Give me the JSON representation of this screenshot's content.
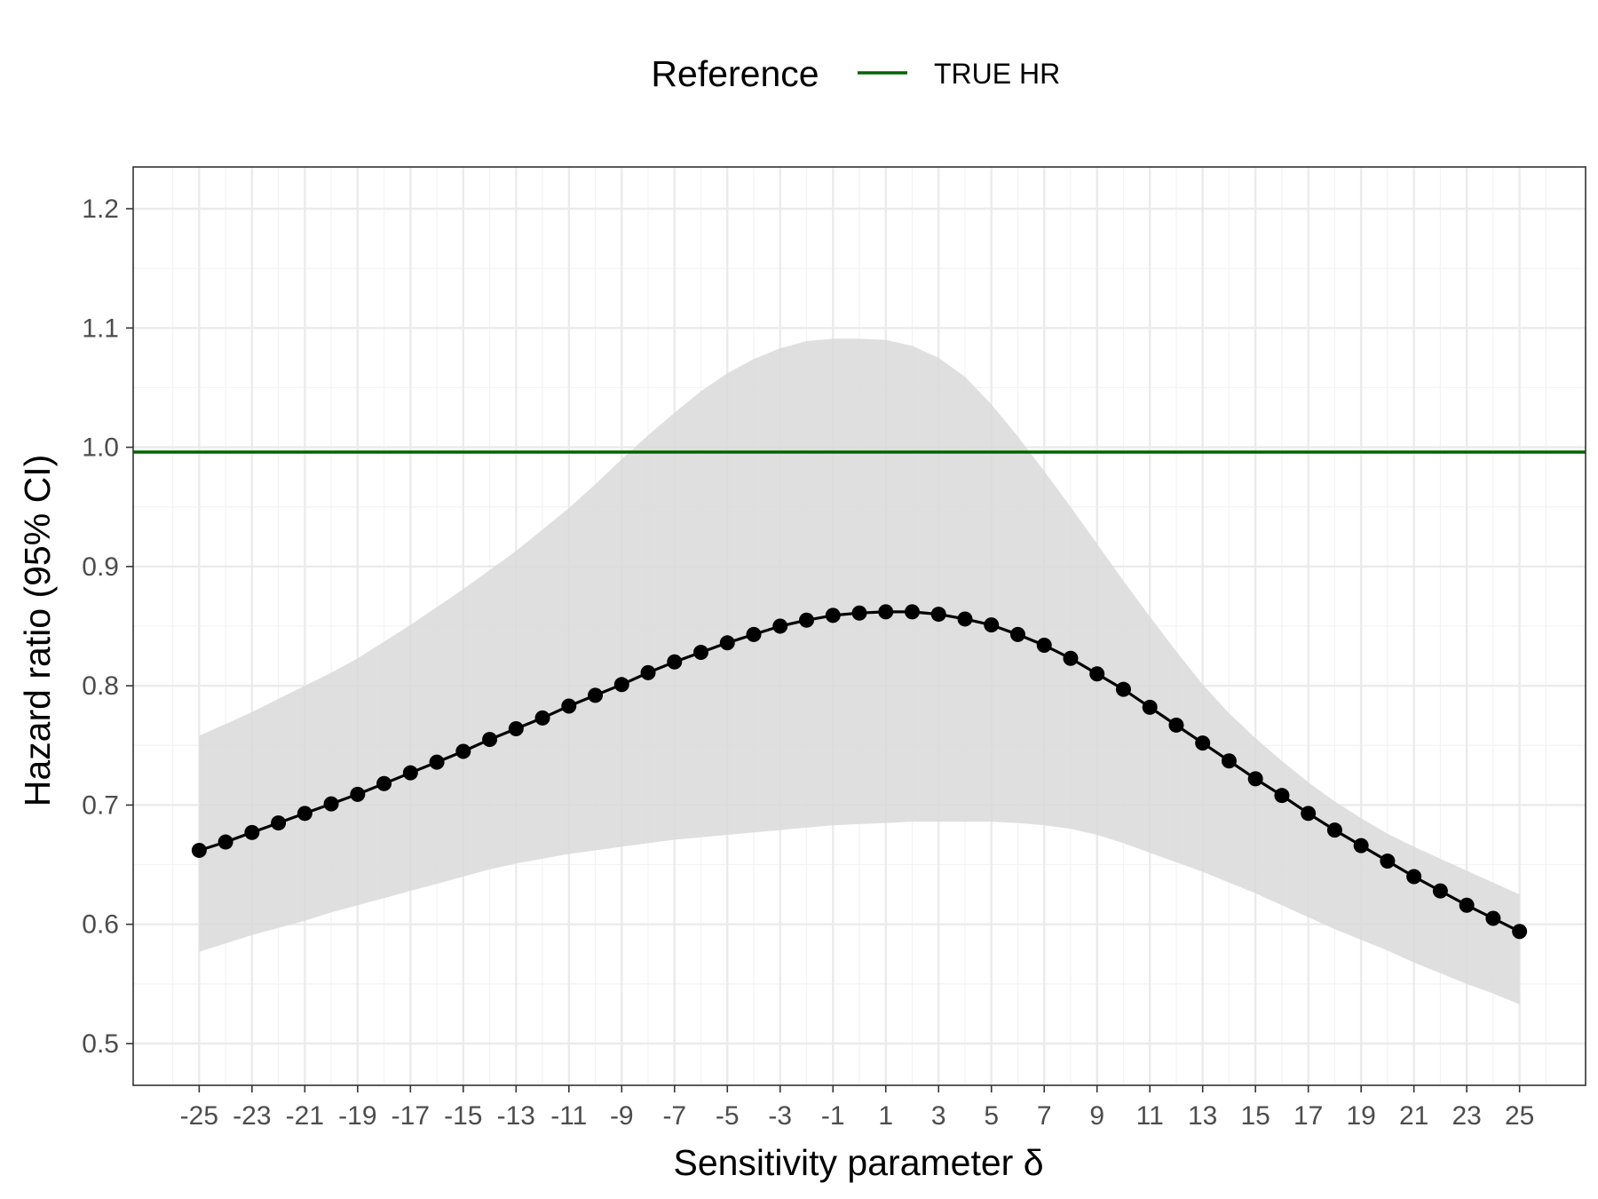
{
  "chart_data": {
    "type": "line",
    "xlabel": "Sensitivity parameter δ",
    "ylabel": "Hazard ratio (95% CI)",
    "xlim": [
      -27.5,
      27.5
    ],
    "ylim": [
      0.465,
      1.235
    ],
    "x_ticks": [
      -25,
      -23,
      -21,
      -19,
      -17,
      -15,
      -13,
      -11,
      -9,
      -7,
      -5,
      -3,
      -1,
      1,
      3,
      5,
      7,
      9,
      11,
      13,
      15,
      17,
      19,
      21,
      23,
      25
    ],
    "y_ticks": [
      0.5,
      0.6,
      0.7,
      0.8,
      0.9,
      1.0,
      1.1,
      1.2
    ],
    "x_tick_labels": [
      "-25",
      "-23",
      "-21",
      "-19",
      "-17",
      "-15",
      "-13",
      "-11",
      "-9",
      "-7",
      "-5",
      "-3",
      "-1",
      "1",
      "3",
      "5",
      "7",
      "9",
      "11",
      "13",
      "15",
      "17",
      "19",
      "21",
      "23",
      "25"
    ],
    "y_tick_labels": [
      "0.5",
      "0.6",
      "0.7",
      "0.8",
      "0.9",
      "1.0",
      "1.1",
      "1.2"
    ],
    "grid": true,
    "legend": {
      "title": "Reference",
      "position": "top",
      "entries": [
        {
          "label": "TRUE HR",
          "color": "#006400"
        }
      ]
    },
    "reference_line": {
      "y": 0.996,
      "color": "#006400",
      "label": "TRUE HR"
    },
    "series": [
      {
        "x": [
          -25,
          -24,
          -23,
          -22,
          -21,
          -20,
          -19,
          -18,
          -17,
          -16,
          -15,
          -14,
          -13,
          -12,
          -11,
          -10,
          -9,
          -8,
          -7,
          -6,
          -5,
          -4,
          -3,
          -2,
          -1,
          0,
          1,
          2,
          3,
          4,
          5,
          6,
          7,
          8,
          9,
          10,
          11,
          12,
          13,
          14,
          15,
          16,
          17,
          18,
          19,
          20,
          21,
          22,
          23,
          24,
          25
        ],
        "y": [
          0.662,
          0.669,
          0.677,
          0.685,
          0.693,
          0.701,
          0.709,
          0.718,
          0.727,
          0.736,
          0.745,
          0.755,
          0.764,
          0.773,
          0.783,
          0.792,
          0.801,
          0.811,
          0.82,
          0.828,
          0.836,
          0.843,
          0.85,
          0.855,
          0.859,
          0.861,
          0.862,
          0.862,
          0.86,
          0.856,
          0.851,
          0.843,
          0.834,
          0.823,
          0.81,
          0.797,
          0.782,
          0.767,
          0.752,
          0.737,
          0.722,
          0.708,
          0.693,
          0.679,
          0.666,
          0.653,
          0.64,
          0.628,
          0.616,
          0.605,
          0.594
        ],
        "lower": [
          0.577,
          0.584,
          0.591,
          0.597,
          0.603,
          0.61,
          0.616,
          0.622,
          0.628,
          0.634,
          0.64,
          0.646,
          0.651,
          0.655,
          0.659,
          0.662,
          0.665,
          0.668,
          0.671,
          0.673,
          0.675,
          0.677,
          0.679,
          0.681,
          0.683,
          0.684,
          0.685,
          0.686,
          0.686,
          0.686,
          0.686,
          0.685,
          0.683,
          0.68,
          0.675,
          0.668,
          0.66,
          0.652,
          0.644,
          0.635,
          0.626,
          0.616,
          0.606,
          0.596,
          0.587,
          0.578,
          0.568,
          0.559,
          0.55,
          0.542,
          0.533
        ],
        "upper": [
          0.758,
          0.768,
          0.778,
          0.789,
          0.8,
          0.811,
          0.823,
          0.837,
          0.851,
          0.866,
          0.881,
          0.897,
          0.913,
          0.931,
          0.949,
          0.969,
          0.99,
          1.01,
          1.029,
          1.047,
          1.062,
          1.074,
          1.083,
          1.089,
          1.091,
          1.091,
          1.09,
          1.085,
          1.075,
          1.059,
          1.036,
          1.009,
          0.98,
          0.95,
          0.919,
          0.888,
          0.858,
          0.829,
          0.801,
          0.777,
          0.756,
          0.737,
          0.719,
          0.703,
          0.689,
          0.676,
          0.665,
          0.655,
          0.645,
          0.635,
          0.625
        ]
      }
    ],
    "colors": {
      "line": "#000000",
      "points": "#000000",
      "ribbon": "#d9d9d9",
      "reference": "#006400",
      "panel_border": "#333333",
      "grid_major": "#ebebeb",
      "grid_minor": "#f3f3f3"
    }
  }
}
